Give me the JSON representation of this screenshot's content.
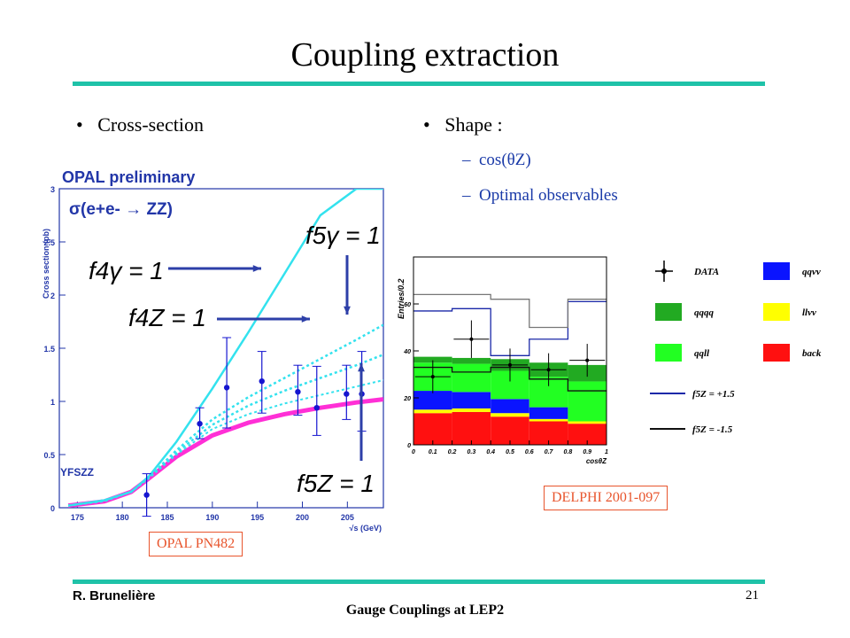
{
  "slide": {
    "title": "Coupling extraction",
    "left_bullet": "Cross-section",
    "right_bullet": "Shape :",
    "right_sub": [
      "cos(θZ)",
      "Optimal observables"
    ],
    "opal_box": "OPAL PN482",
    "delphi_box": "DELPHI 2001-097",
    "footer_author": "R. Brunelière",
    "footer_title": "Gauge Couplings at LEP2",
    "page_number": "21",
    "accent_color": "#1fc2a8"
  },
  "chart_data": [
    {
      "type": "line",
      "title": "OPAL preliminary",
      "subtitle": "σ(e+e- → ZZ)",
      "model_label": "YFSZZ",
      "xlabel": "√s (GeV)",
      "ylabel": "Cross section (pb)",
      "xlim": [
        173,
        209
      ],
      "ylim": [
        0,
        3
      ],
      "x_ticks": [
        "175",
        "180",
        "185",
        "190",
        "195",
        "200",
        "205"
      ],
      "y_ticks": [
        "0",
        "0.5",
        "1",
        "1.5",
        "2",
        "2.5",
        "3"
      ],
      "annotations": [
        "f4γ = 1",
        "f4Z = 1",
        "f5γ = 1",
        "f5Z = 1"
      ],
      "series": [
        {
          "x": [
            174,
            178,
            181,
            183,
            186,
            190,
            194,
            198,
            202,
            206,
            209
          ],
          "y": [
            0.02,
            0.06,
            0.15,
            0.28,
            0.48,
            0.68,
            0.8,
            0.88,
            0.94,
            0.99,
            1.02
          ]
        },
        {
          "x": [
            174,
            178,
            181,
            183,
            186,
            190,
            194,
            198,
            202,
            206,
            209
          ],
          "y": [
            0.02,
            0.07,
            0.15,
            0.3,
            0.62,
            1.12,
            1.65,
            2.2,
            2.75,
            3.0,
            3.0
          ]
        },
        {
          "x": [
            174,
            178,
            181,
            183,
            186,
            190,
            194,
            198,
            202,
            206,
            209
          ],
          "y": [
            0.02,
            0.07,
            0.15,
            0.29,
            0.54,
            0.83,
            1.04,
            1.22,
            1.4,
            1.58,
            1.72
          ]
        },
        {
          "x": [
            174,
            178,
            181,
            183,
            186,
            190,
            194,
            198,
            202,
            206,
            209
          ],
          "y": [
            0.02,
            0.07,
            0.15,
            0.29,
            0.52,
            0.78,
            0.96,
            1.1,
            1.22,
            1.34,
            1.44
          ]
        },
        {
          "x": [
            174,
            178,
            181,
            183,
            186,
            190,
            194,
            198,
            202,
            206,
            209
          ],
          "y": [
            0.02,
            0.06,
            0.15,
            0.28,
            0.5,
            0.74,
            0.88,
            0.98,
            1.06,
            1.14,
            1.2
          ]
        },
        {
          "name": "data",
          "x": [
            182.7,
            188.6,
            191.6,
            195.5,
            199.5,
            201.6,
            204.9,
            206.6
          ],
          "y": [
            0.12,
            0.79,
            1.13,
            1.19,
            1.09,
            0.94,
            1.07,
            1.07
          ],
          "err_low": [
            0.2,
            0.14,
            0.38,
            0.3,
            0.22,
            0.26,
            0.24,
            0.35
          ],
          "err_high": [
            0.2,
            0.15,
            0.47,
            0.28,
            0.25,
            0.39,
            0.27,
            0.4
          ]
        }
      ],
      "colors": {
        "theory": "#ff2fd6",
        "couplings": "#33e2ee",
        "data": "#1515d0",
        "text": "#2236a8"
      }
    },
    {
      "type": "bar",
      "xlabel": "cosθZ",
      "ylabel": "Entries/0.2",
      "ylim": [
        0,
        80
      ],
      "x_ticks": [
        "0",
        "0.1",
        "0.2",
        "0.3",
        "0.4",
        "0.5",
        "0.6",
        "0.7",
        "0.8",
        "0.9",
        "1"
      ],
      "y_ticks": [
        "0",
        "20",
        "40",
        "60"
      ],
      "categories": [
        "0-0.2",
        "0.2-0.4",
        "0.4-0.6",
        "0.6-0.8",
        "0.8-1"
      ],
      "series": [
        {
          "name": "back",
          "values": [
            13.5,
            14.0,
            12.0,
            10.0,
            9.0
          ],
          "color": "#ff1010"
        },
        {
          "name": "llνν",
          "values": [
            1.5,
            1.5,
            1.5,
            1.0,
            1.0
          ],
          "color": "#ffff00"
        },
        {
          "name": "qqνν",
          "values": [
            8.0,
            7.0,
            6.0,
            5.0,
            0.0
          ],
          "color": "#0a14ff"
        },
        {
          "name": "qqll",
          "values": [
            12.0,
            12.0,
            12.0,
            13.0,
            17.0
          ],
          "color": "#22ff22"
        },
        {
          "name": "qqqq",
          "values": [
            2.5,
            2.5,
            5.0,
            6.0,
            7.0
          ],
          "color": "#22aa22"
        }
      ],
      "data": {
        "x": [
          0.1,
          0.3,
          0.5,
          0.7,
          0.9
        ],
        "y": [
          29,
          45,
          34,
          32,
          36
        ],
        "err": [
          7,
          8,
          7,
          7,
          7
        ]
      },
      "lines": [
        {
          "name": "f5Z = +1.5",
          "values": [
            57,
            58,
            38,
            45,
            61
          ],
          "color": "#1a28a8"
        },
        {
          "name": "f5Z = -1.5",
          "values": [
            33,
            31,
            33,
            28,
            23
          ],
          "color": "#111111"
        },
        {
          "name": "grey",
          "values": [
            64,
            64,
            62,
            50,
            62
          ],
          "color": "#777777"
        }
      ],
      "legend": [
        "DATA",
        "qqνν",
        "qqqq",
        "llνν",
        "qqll",
        "back",
        "f5Z = +1.5",
        "f5Z = -1.5"
      ]
    }
  ]
}
